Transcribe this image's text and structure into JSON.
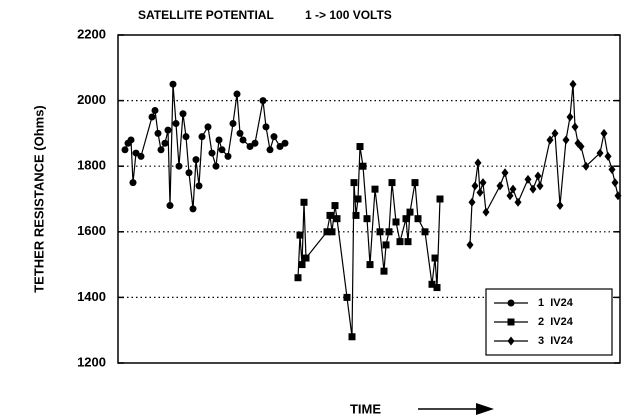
{
  "chart_data": {
    "type": "line",
    "title": "SATELLITE POTENTIAL",
    "subtitle": "1 -> 100 VOLTS",
    "x_label": "TIME",
    "y_label": "TETHER RESISTANCE (Ohms)",
    "xlim": [
      0,
      502
    ],
    "ylim": [
      1200,
      2200
    ],
    "yticks": [
      1200,
      1400,
      1600,
      1800,
      2000,
      2200
    ],
    "grid": true,
    "legend": "lower right",
    "series": [
      {
        "name": "1  IV24",
        "color": "#000000",
        "marker": "circle",
        "x": [
          7,
          10,
          13,
          15,
          18,
          23,
          34,
          37,
          40,
          43,
          47,
          50,
          52,
          55,
          58,
          61,
          65,
          68,
          71,
          75,
          78,
          81,
          84,
          90,
          94,
          98,
          101,
          104,
          110,
          115,
          119,
          122,
          125,
          132,
          137,
          145,
          148,
          152,
          156,
          162,
          167
        ],
        "values": [
          1850,
          1870,
          1880,
          1750,
          1840,
          1830,
          1950,
          1970,
          1900,
          1850,
          1870,
          1910,
          1680,
          2050,
          1930,
          1800,
          1960,
          1890,
          1780,
          1670,
          1820,
          1740,
          1890,
          1920,
          1840,
          1800,
          1880,
          1850,
          1830,
          1930,
          2020,
          1900,
          1880,
          1860,
          1870,
          2000,
          1920,
          1850,
          1890,
          1860,
          1870
        ]
      },
      {
        "name": "2  IV24",
        "color": "#000000",
        "marker": "square",
        "x": [
          180,
          182,
          184,
          186,
          188,
          209,
          212,
          214,
          217,
          219,
          229,
          234,
          236,
          238,
          240,
          242,
          245,
          249,
          252,
          257,
          262,
          266,
          268,
          271,
          274,
          278,
          282,
          288,
          290,
          292,
          297,
          300,
          307,
          314,
          317,
          319,
          322
        ],
        "values": [
          1460,
          1590,
          1500,
          1690,
          1520,
          1600,
          1650,
          1600,
          1680,
          1640,
          1400,
          1280,
          1750,
          1650,
          1700,
          1860,
          1800,
          1640,
          1500,
          1730,
          1600,
          1480,
          1560,
          1600,
          1750,
          1630,
          1570,
          1640,
          1570,
          1660,
          1750,
          1640,
          1600,
          1440,
          1520,
          1430,
          1700
        ]
      },
      {
        "name": "3  IV24",
        "color": "#000000",
        "marker": "diamond",
        "x": [
          352,
          354,
          357,
          360,
          362,
          365,
          368,
          382,
          387,
          392,
          395,
          400,
          410,
          415,
          420,
          422,
          432,
          437,
          442,
          448,
          452,
          455,
          457,
          460,
          463,
          468,
          482,
          486,
          490,
          494,
          497,
          500
        ],
        "values": [
          1560,
          1690,
          1740,
          1810,
          1720,
          1750,
          1660,
          1740,
          1780,
          1710,
          1730,
          1690,
          1760,
          1730,
          1770,
          1740,
          1880,
          1900,
          1680,
          1880,
          1950,
          2050,
          1920,
          1870,
          1860,
          1800,
          1840,
          1900,
          1830,
          1790,
          1750,
          1710
        ]
      }
    ]
  }
}
